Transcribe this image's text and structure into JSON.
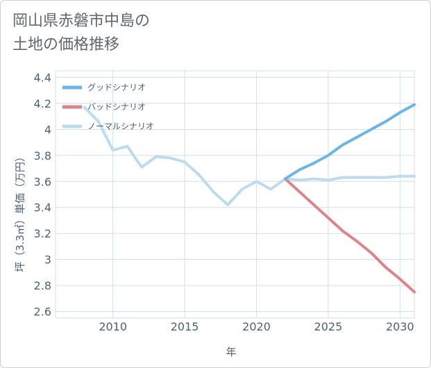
{
  "title_lines": [
    "岡山県赤磐市中島の",
    "土地の価格推移"
  ],
  "chart_data": {
    "type": "line",
    "title": "岡山県赤磐市中島の土地の価格推移",
    "xlabel": "年",
    "ylabel": "坪（3.3㎡）単価（万円）",
    "xlim": [
      2006,
      2031
    ],
    "ylim": [
      2.55,
      4.45
    ],
    "xticks": [
      2010,
      2015,
      2020,
      2025,
      2030
    ],
    "yticks": [
      2.6,
      2.8,
      3,
      3.2,
      3.4,
      3.6,
      3.8,
      4,
      4.2,
      4.4
    ],
    "ytick_labels": [
      "2.6",
      "2.8",
      "3",
      "3.2",
      "3.4",
      "3.6",
      "3.8",
      "4",
      "4.2",
      "4.4"
    ],
    "legend_position": "top-left",
    "series": [
      {
        "name": "グッドシナリオ",
        "color": "#6cb5e8",
        "x": [
          2022,
          2023,
          2024,
          2025,
          2026,
          2027,
          2028,
          2029,
          2030,
          2031
        ],
        "y": [
          3.62,
          3.69,
          3.74,
          3.8,
          3.88,
          3.94,
          4.0,
          4.06,
          4.13,
          4.19
        ]
      },
      {
        "name": "バッドシナリオ",
        "color": "#d9858a",
        "x": [
          2022,
          2023,
          2024,
          2025,
          2026,
          2027,
          2028,
          2029,
          2030,
          2031
        ],
        "y": [
          3.62,
          3.52,
          3.42,
          3.32,
          3.22,
          3.14,
          3.05,
          2.94,
          2.85,
          2.75
        ]
      },
      {
        "name": "ノーマルシナリオ",
        "color": "#bcdcec",
        "x": [
          2008,
          2009,
          2010,
          2011,
          2012,
          2013,
          2014,
          2015,
          2016,
          2017,
          2018,
          2019,
          2020,
          2021,
          2022,
          2023,
          2024,
          2025,
          2026,
          2027,
          2028,
          2029,
          2030,
          2031
        ],
        "y": [
          4.17,
          4.06,
          3.84,
          3.87,
          3.71,
          3.79,
          3.78,
          3.75,
          3.65,
          3.52,
          3.42,
          3.54,
          3.6,
          3.54,
          3.62,
          3.61,
          3.62,
          3.61,
          3.63,
          3.63,
          3.63,
          3.63,
          3.64,
          3.64
        ]
      }
    ]
  }
}
